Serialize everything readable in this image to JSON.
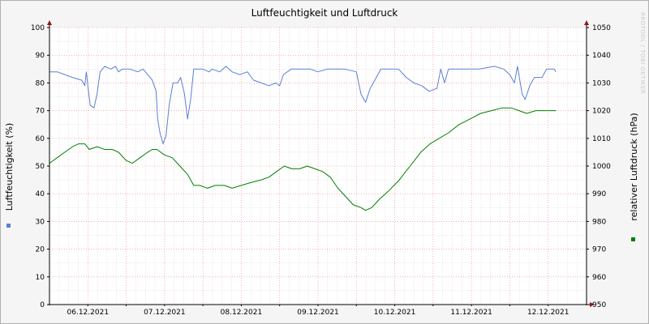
{
  "chart_data": {
    "type": "line",
    "title": "Luftfeuchtigkeit und Luftdruck",
    "watermark": "RRDTOOL / TOBI OETIKER",
    "y_left": {
      "label": "Luftfeuchtigkeit (%)",
      "range": [
        0,
        100
      ],
      "ticks": [
        0,
        10,
        20,
        30,
        40,
        50,
        60,
        70,
        80,
        90,
        100
      ]
    },
    "y_right": {
      "label": "relativer Luftdruck (hPa)",
      "range": [
        950,
        1050
      ],
      "ticks": [
        950,
        960,
        970,
        980,
        990,
        1000,
        1010,
        1020,
        1030,
        1040,
        1050
      ]
    },
    "x": {
      "range": [
        0,
        7
      ],
      "day_labels": [
        "06.12.2021",
        "07.12.2021",
        "08.12.2021",
        "09.12.2021",
        "10.12.2021",
        "11.12.2021",
        "12.12.2021"
      ]
    },
    "grid": true,
    "series": [
      {
        "axis": "left",
        "color": "#5b7fd6",
        "points": [
          [
            0.0,
            84
          ],
          [
            0.1,
            84
          ],
          [
            0.2,
            83
          ],
          [
            0.3,
            82
          ],
          [
            0.42,
            81
          ],
          [
            0.46,
            79
          ],
          [
            0.48,
            84
          ],
          [
            0.5,
            79
          ],
          [
            0.53,
            72
          ],
          [
            0.58,
            71
          ],
          [
            0.62,
            76
          ],
          [
            0.66,
            84
          ],
          [
            0.72,
            86
          ],
          [
            0.8,
            85
          ],
          [
            0.86,
            86
          ],
          [
            0.9,
            84
          ],
          [
            0.95,
            85
          ],
          [
            1.05,
            85
          ],
          [
            1.15,
            84
          ],
          [
            1.22,
            85
          ],
          [
            1.28,
            83
          ],
          [
            1.34,
            81
          ],
          [
            1.39,
            77
          ],
          [
            1.41,
            67
          ],
          [
            1.44,
            62
          ],
          [
            1.48,
            58
          ],
          [
            1.52,
            61
          ],
          [
            1.56,
            72
          ],
          [
            1.61,
            80
          ],
          [
            1.67,
            80
          ],
          [
            1.71,
            82
          ],
          [
            1.76,
            76
          ],
          [
            1.8,
            67
          ],
          [
            1.84,
            74
          ],
          [
            1.88,
            85
          ],
          [
            2.0,
            85
          ],
          [
            2.08,
            84
          ],
          [
            2.12,
            85
          ],
          [
            2.22,
            84
          ],
          [
            2.3,
            86
          ],
          [
            2.38,
            84
          ],
          [
            2.48,
            83
          ],
          [
            2.58,
            84
          ],
          [
            2.66,
            81
          ],
          [
            2.76,
            80
          ],
          [
            2.86,
            79
          ],
          [
            2.95,
            80
          ],
          [
            3.0,
            79
          ],
          [
            3.05,
            83
          ],
          [
            3.15,
            85
          ],
          [
            3.4,
            85
          ],
          [
            3.5,
            84
          ],
          [
            3.62,
            85
          ],
          [
            3.85,
            85
          ],
          [
            4.0,
            84
          ],
          [
            4.06,
            76
          ],
          [
            4.12,
            73
          ],
          [
            4.18,
            78
          ],
          [
            4.26,
            82
          ],
          [
            4.32,
            85
          ],
          [
            4.55,
            85
          ],
          [
            4.65,
            82
          ],
          [
            4.75,
            80
          ],
          [
            4.85,
            79
          ],
          [
            4.95,
            77
          ],
          [
            5.05,
            78
          ],
          [
            5.1,
            85
          ],
          [
            5.15,
            80
          ],
          [
            5.2,
            85
          ],
          [
            5.4,
            85
          ],
          [
            5.6,
            85
          ],
          [
            5.8,
            86
          ],
          [
            5.92,
            85
          ],
          [
            6.0,
            83
          ],
          [
            6.06,
            80
          ],
          [
            6.1,
            86
          ],
          [
            6.16,
            76
          ],
          [
            6.2,
            74
          ],
          [
            6.26,
            79
          ],
          [
            6.32,
            82
          ],
          [
            6.42,
            82
          ],
          [
            6.48,
            85
          ],
          [
            6.58,
            85
          ],
          [
            6.6,
            84
          ]
        ]
      },
      {
        "axis": "right",
        "color": "#008000",
        "points": [
          [
            0.0,
            1001
          ],
          [
            0.1,
            1003
          ],
          [
            0.2,
            1005
          ],
          [
            0.3,
            1007
          ],
          [
            0.38,
            1008
          ],
          [
            0.46,
            1008
          ],
          [
            0.52,
            1006
          ],
          [
            0.62,
            1007
          ],
          [
            0.72,
            1006
          ],
          [
            0.82,
            1006
          ],
          [
            0.9,
            1005
          ],
          [
            1.0,
            1002
          ],
          [
            1.08,
            1001
          ],
          [
            1.18,
            1003
          ],
          [
            1.28,
            1005
          ],
          [
            1.34,
            1006
          ],
          [
            1.4,
            1006
          ],
          [
            1.5,
            1004
          ],
          [
            1.6,
            1003
          ],
          [
            1.7,
            1000
          ],
          [
            1.8,
            997
          ],
          [
            1.88,
            993
          ],
          [
            1.96,
            993
          ],
          [
            2.06,
            992
          ],
          [
            2.16,
            993
          ],
          [
            2.28,
            993
          ],
          [
            2.38,
            992
          ],
          [
            2.5,
            993
          ],
          [
            2.62,
            994
          ],
          [
            2.76,
            995
          ],
          [
            2.86,
            996
          ],
          [
            2.96,
            998
          ],
          [
            3.06,
            1000
          ],
          [
            3.16,
            999
          ],
          [
            3.26,
            999
          ],
          [
            3.36,
            1000
          ],
          [
            3.46,
            999
          ],
          [
            3.56,
            998
          ],
          [
            3.66,
            996
          ],
          [
            3.76,
            992
          ],
          [
            3.86,
            989
          ],
          [
            3.96,
            986
          ],
          [
            4.06,
            985
          ],
          [
            4.12,
            984
          ],
          [
            4.2,
            985
          ],
          [
            4.3,
            988
          ],
          [
            4.42,
            991
          ],
          [
            4.56,
            995
          ],
          [
            4.7,
            1000
          ],
          [
            4.84,
            1005
          ],
          [
            4.96,
            1008
          ],
          [
            5.08,
            1010
          ],
          [
            5.2,
            1012
          ],
          [
            5.34,
            1015
          ],
          [
            5.48,
            1017
          ],
          [
            5.62,
            1019
          ],
          [
            5.76,
            1020
          ],
          [
            5.9,
            1021
          ],
          [
            6.02,
            1021
          ],
          [
            6.12,
            1020
          ],
          [
            6.22,
            1019
          ],
          [
            6.34,
            1020
          ],
          [
            6.48,
            1020
          ],
          [
            6.6,
            1020
          ]
        ]
      }
    ]
  }
}
